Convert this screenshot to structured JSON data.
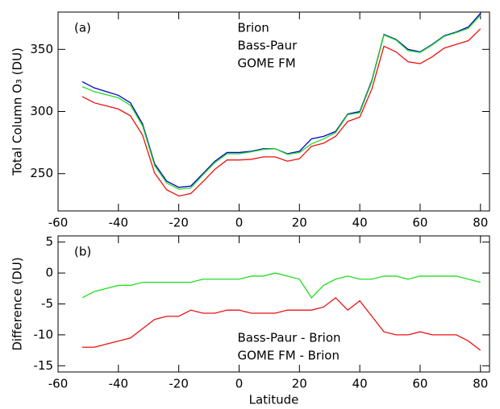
{
  "chart_data": [
    {
      "type": "line",
      "annotation": "(a)",
      "y_label": "Total Column O₃ (DU)",
      "legend": "upper center",
      "x": [
        -52,
        -48,
        -44,
        -40,
        -36,
        -32,
        -28,
        -24,
        -20,
        -16,
        -12,
        -8,
        -4,
        0,
        4,
        8,
        12,
        16,
        20,
        24,
        28,
        32,
        36,
        40,
        44,
        48,
        52,
        56,
        60,
        64,
        68,
        72,
        76,
        80
      ],
      "series": [
        {
          "name": "Brion",
          "color": "#0000cc",
          "values": [
            324,
            319,
            316,
            313,
            307,
            290,
            258,
            244,
            239,
            240,
            250,
            260,
            267,
            267,
            268,
            270,
            270,
            266,
            268,
            278,
            280,
            284,
            298,
            300,
            325,
            362,
            358,
            350,
            348,
            354,
            361,
            364,
            368,
            379
          ]
        },
        {
          "name": "Bass-Paur",
          "color": "#22dd22",
          "values": [
            320,
            316,
            313.5,
            311,
            305,
            288.5,
            256.5,
            242.5,
            237.5,
            238.5,
            249,
            259,
            266,
            266,
            267.5,
            269.5,
            270,
            265.5,
            267,
            274,
            278,
            283,
            297.5,
            299,
            324,
            361.5,
            357.5,
            349,
            347.5,
            353.5,
            360.5,
            363.5,
            367,
            377.5
          ]
        },
        {
          "name": "GOME FM",
          "color": "#ee1111",
          "values": [
            312,
            307,
            304.5,
            302,
            296.5,
            281,
            250.5,
            237,
            232,
            234,
            243.5,
            253.5,
            261,
            261,
            261.5,
            263.5,
            263.5,
            260,
            262,
            272,
            274.5,
            280,
            292,
            295.5,
            318,
            352.5,
            348,
            340,
            338.5,
            344,
            351,
            354,
            357,
            366.5
          ]
        }
      ],
      "xlim": [
        -60,
        83
      ],
      "xticks": [
        -60,
        -40,
        -20,
        0,
        20,
        40,
        60,
        80
      ],
      "ylim": [
        220,
        380
      ],
      "yticks": [
        250,
        300,
        350
      ]
    },
    {
      "type": "line",
      "annotation": "(b)",
      "y_label": "Difference (DU)",
      "x_label": "Latitude",
      "legend": "lower center",
      "x": [
        -52,
        -48,
        -44,
        -40,
        -36,
        -32,
        -28,
        -24,
        -20,
        -16,
        -12,
        -8,
        -4,
        0,
        4,
        8,
        12,
        16,
        20,
        24,
        28,
        32,
        36,
        40,
        44,
        48,
        52,
        56,
        60,
        64,
        68,
        72,
        76,
        80
      ],
      "series": [
        {
          "name": "Bass-Paur - Brion",
          "color": "#22dd22",
          "values": [
            -4,
            -3,
            -2.5,
            -2,
            -2,
            -1.5,
            -1.5,
            -1.5,
            -1.5,
            -1.5,
            -1,
            -1,
            -1,
            -1,
            -0.5,
            -0.5,
            0,
            -0.5,
            -1,
            -4,
            -2,
            -1,
            -0.5,
            -1,
            -1,
            -0.5,
            -0.5,
            -1,
            -0.5,
            -0.5,
            -0.5,
            -0.5,
            -1,
            -1.5
          ]
        },
        {
          "name": "GOME FM - Brion",
          "color": "#ee1111",
          "values": [
            -12,
            -12,
            -11.5,
            -11,
            -10.5,
            -9,
            -7.5,
            -7,
            -7,
            -6,
            -6.5,
            -6.5,
            -6,
            -6,
            -6.5,
            -6.5,
            -6.5,
            -6,
            -6,
            -6,
            -5.5,
            -4,
            -6,
            -4.5,
            -7,
            -9.5,
            -10,
            -10,
            -9.5,
            -10,
            -10,
            -10,
            -11,
            -12.5
          ]
        }
      ],
      "xlim": [
        -60,
        83
      ],
      "xticks": [
        -60,
        -40,
        -20,
        0,
        20,
        40,
        60,
        80
      ],
      "ylim": [
        -16,
        6
      ],
      "yticks": [
        -15,
        -10,
        -5,
        0,
        5
      ]
    }
  ]
}
